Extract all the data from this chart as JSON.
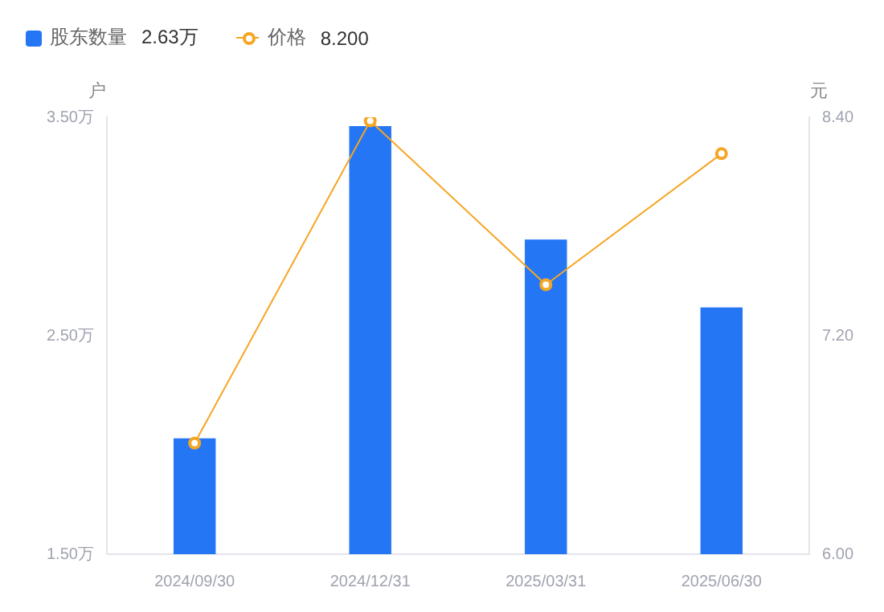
{
  "chart_data": {
    "type": "bar",
    "categories": [
      "2024/09/30",
      "2024/12/31",
      "2025/03/31",
      "2025/06/30"
    ],
    "series": [
      {
        "name": "股东数量",
        "color": "#2476f5",
        "values": [
          2.03,
          3.46,
          2.94,
          2.63
        ]
      },
      {
        "name": "价格",
        "type": "line",
        "axis": "y2",
        "color": "#f5a623",
        "values": [
          6.61,
          8.38,
          7.48,
          8.2
        ]
      }
    ],
    "ylabel": "户",
    "y2label": "元",
    "ylim": [
      1.5,
      3.5
    ],
    "yticks": [
      {
        "value": 1.5,
        "label": "1.50万"
      },
      {
        "value": 2.5,
        "label": "2.50万"
      },
      {
        "value": 3.5,
        "label": "3.50万"
      }
    ],
    "y2lim": [
      6,
      8.4
    ],
    "y2ticks": [
      {
        "value": 6,
        "label": "6.00"
      },
      {
        "value": 7.2,
        "label": "7.20"
      },
      {
        "value": 8.4,
        "label": "8.40"
      }
    ],
    "annotations": [
      "2.63万",
      "8.200"
    ],
    "legend": "top left",
    "marker": "circle",
    "grid": false
  }
}
